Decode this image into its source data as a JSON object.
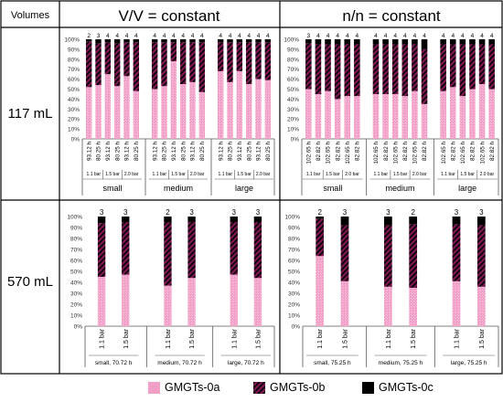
{
  "header": {
    "corner": "Volumes",
    "col1": "V/V = constant",
    "col2": "n/n = constant",
    "row1": "117 mL",
    "row2": "570 mL"
  },
  "legend": [
    {
      "label": "GMGTs-0a",
      "key": "a"
    },
    {
      "label": "GMGTs-0b",
      "key": "b"
    },
    {
      "label": "GMGTs-0c",
      "key": "c"
    }
  ],
  "colors": {
    "a": "#f29fc7",
    "b": "#7a1650",
    "c": "#000000",
    "grid": "#7f7f7f",
    "axis": "#595959"
  },
  "chart_data": [
    {
      "id": "117-vv",
      "type": "bar",
      "stacked": true,
      "ylim": [
        0,
        100
      ],
      "ylabel_format": "%",
      "yticks": [
        "0%",
        "10%",
        "20%",
        "30%",
        "40%",
        "50%",
        "60%",
        "70%",
        "80%",
        "90%",
        "100%"
      ],
      "groups": [
        {
          "label": "small",
          "bars": [
            {
              "time": "93.12 h",
              "pressure": "1.1 bar",
              "n": "2",
              "a": 52,
              "b": 46,
              "c": 2
            },
            {
              "time": "80.25 h",
              "pressure": "1.1 bar",
              "n": "3",
              "a": 54,
              "b": 42,
              "c": 4
            },
            {
              "time": "93.12 h",
              "pressure": "1.5 bar",
              "n": "4",
              "a": 65,
              "b": 32,
              "c": 3
            },
            {
              "time": "80.25 h",
              "pressure": "1.5 bar",
              "n": "4",
              "a": 53,
              "b": 43,
              "c": 4
            },
            {
              "time": "93.12 h",
              "pressure": "2.0 bar",
              "n": "4",
              "a": 63,
              "b": 34,
              "c": 3
            },
            {
              "time": "80.25 h",
              "pressure": "2.0 bar",
              "n": "4",
              "a": 48,
              "b": 49,
              "c": 3
            }
          ]
        },
        {
          "label": "medium",
          "bars": [
            {
              "time": "93.12 h",
              "pressure": "",
              "n": "4",
              "a": 50,
              "b": 47,
              "c": 3
            },
            {
              "time": "80.25 h",
              "pressure": "",
              "n": "4",
              "a": 53,
              "b": 44,
              "c": 3
            },
            {
              "time": "93.12 h",
              "pressure": "",
              "n": "4",
              "a": 78,
              "b": 19,
              "c": 3
            },
            {
              "time": "80.25 h",
              "pressure": "",
              "n": "4",
              "a": 55,
              "b": 42,
              "c": 3
            },
            {
              "time": "93.12 h",
              "pressure": "",
              "n": "4",
              "a": 57,
              "b": 40,
              "c": 3
            },
            {
              "time": "80.25 h",
              "pressure": "",
              "n": "4",
              "a": 47,
              "b": 50,
              "c": 3
            }
          ]
        },
        {
          "label": "large",
          "bars": [
            {
              "time": "93.12 h",
              "pressure": "",
              "n": "4",
              "a": 68,
              "b": 29,
              "c": 3
            },
            {
              "time": "80.25 h",
              "pressure": "",
              "n": "4",
              "a": 57,
              "b": 40,
              "c": 3
            },
            {
              "time": "93.12 h",
              "pressure": "",
              "n": "4",
              "a": 68,
              "b": 29,
              "c": 3
            },
            {
              "time": "80.25 h",
              "pressure": "",
              "n": "4",
              "a": 55,
              "b": 42,
              "c": 3
            },
            {
              "time": "93.12 h",
              "pressure": "",
              "n": "4",
              "a": 60,
              "b": 37,
              "c": 3
            },
            {
              "time": "80.25 h",
              "pressure": "",
              "n": "4",
              "a": 59,
              "b": 38,
              "c": 3
            }
          ]
        }
      ]
    },
    {
      "id": "117-nn",
      "type": "bar",
      "stacked": true,
      "ylim": [
        0,
        100
      ],
      "ylabel_format": "%",
      "yticks": [
        "0%",
        "10%",
        "20%",
        "30%",
        "40%",
        "50%",
        "60%",
        "70%",
        "80%",
        "90%",
        "100%"
      ],
      "groups": [
        {
          "label": "small",
          "bars": [
            {
              "time": "102.65 h",
              "pressure": "1.1 bar",
              "n": "3",
              "a": 50,
              "b": 46,
              "c": 4
            },
            {
              "time": "82.82 h",
              "pressure": "1.1 bar",
              "n": "4",
              "a": 45,
              "b": 50,
              "c": 5
            },
            {
              "time": "102.65 h",
              "pressure": "1.5 bar",
              "n": "4",
              "a": 48,
              "b": 47,
              "c": 5
            },
            {
              "time": "82.82 h",
              "pressure": "1.5 bar",
              "n": "4",
              "a": 40,
              "b": 55,
              "c": 5
            },
            {
              "time": "102.65 h",
              "pressure": "2.0 bar",
              "n": "4",
              "a": 43,
              "b": 52,
              "c": 5
            },
            {
              "time": "82.82 h",
              "pressure": "2.0 bar",
              "n": "4",
              "a": 43,
              "b": 52,
              "c": 5
            }
          ]
        },
        {
          "label": "medium",
          "bars": [
            {
              "time": "102.65 h",
              "pressure": "",
              "n": "4",
              "a": 45,
              "b": 50,
              "c": 5
            },
            {
              "time": "82.82 h",
              "pressure": "",
              "n": "4",
              "a": 45,
              "b": 50,
              "c": 5
            },
            {
              "time": "102.65 h",
              "pressure": "",
              "n": "4",
              "a": 45,
              "b": 50,
              "c": 5
            },
            {
              "time": "82.82 h",
              "pressure": "",
              "n": "4",
              "a": 43,
              "b": 52,
              "c": 5
            },
            {
              "time": "102.65 h",
              "pressure": "",
              "n": "4",
              "a": 48,
              "b": 47,
              "c": 5
            },
            {
              "time": "82.82 h",
              "pressure": "",
              "n": "4",
              "a": 35,
              "b": 55,
              "c": 10
            }
          ]
        },
        {
          "label": "large",
          "bars": [
            {
              "time": "102.65 h",
              "pressure": "",
              "n": "4",
              "a": 48,
              "b": 47,
              "c": 5
            },
            {
              "time": "82.82 h",
              "pressure": "",
              "n": "4",
              "a": 52,
              "b": 43,
              "c": 5
            },
            {
              "time": "102.65 h",
              "pressure": "",
              "n": "4",
              "a": 43,
              "b": 52,
              "c": 5
            },
            {
              "time": "82.82 h",
              "pressure": "",
              "n": "4",
              "a": 50,
              "b": 45,
              "c": 5
            },
            {
              "time": "102.65 h",
              "pressure": "",
              "n": "4",
              "a": 55,
              "b": 40,
              "c": 5
            },
            {
              "time": "82.82 h",
              "pressure": "",
              "n": "4",
              "a": 50,
              "b": 45,
              "c": 5
            }
          ]
        }
      ]
    },
    {
      "id": "570-vv",
      "type": "bar",
      "stacked": true,
      "ylim": [
        0,
        100
      ],
      "ylabel_format": "%",
      "yticks": [
        "0%",
        "10%",
        "20%",
        "30%",
        "40%",
        "50%",
        "60%",
        "70%",
        "80%",
        "90%",
        "100%"
      ],
      "groups": [
        {
          "label": "small, 70.72 h",
          "bars": [
            {
              "time": "",
              "pressure": "1.1 bar",
              "n": "3",
              "a": 45,
              "b": 49,
              "c": 6
            },
            {
              "time": "",
              "pressure": "1.5 bar",
              "n": "3",
              "a": 47,
              "b": 48,
              "c": 5
            }
          ]
        },
        {
          "label": "medium, 70.72 h",
          "bars": [
            {
              "time": "",
              "pressure": "1.1 bar",
              "n": "2",
              "a": 37,
              "b": 58,
              "c": 5
            },
            {
              "time": "",
              "pressure": "1.5 bar",
              "n": "3",
              "a": 44,
              "b": 51,
              "c": 5
            }
          ]
        },
        {
          "label": "large, 70.72 h",
          "bars": [
            {
              "time": "",
              "pressure": "1.1 bar",
              "n": "3",
              "a": 47,
              "b": 48,
              "c": 5
            },
            {
              "time": "",
              "pressure": "1.5 bar",
              "n": "3",
              "a": 44,
              "b": 51,
              "c": 5
            }
          ]
        }
      ]
    },
    {
      "id": "570-nn",
      "type": "bar",
      "stacked": true,
      "ylim": [
        0,
        100
      ],
      "ylabel_format": "%",
      "yticks": [
        "0%",
        "10%",
        "20%",
        "30%",
        "40%",
        "50%",
        "60%",
        "70%",
        "80%",
        "90%",
        "100%"
      ],
      "groups": [
        {
          "label": "small, 75.25 h",
          "bars": [
            {
              "time": "",
              "pressure": "1.1 bar",
              "n": "2",
              "a": 64,
              "b": 34,
              "c": 2
            },
            {
              "time": "",
              "pressure": "1.5 bar",
              "n": "3",
              "a": 41,
              "b": 51,
              "c": 8
            }
          ]
        },
        {
          "label": "medium, 75.25 h",
          "bars": [
            {
              "time": "",
              "pressure": "1.1 bar",
              "n": "3",
              "a": 36,
              "b": 56,
              "c": 8
            },
            {
              "time": "",
              "pressure": "1.5 bar",
              "n": "2",
              "a": 35,
              "b": 58,
              "c": 7
            }
          ]
        },
        {
          "label": "large, 75.25 h",
          "bars": [
            {
              "time": "",
              "pressure": "1.1 bar",
              "n": "3",
              "a": 41,
              "b": 52,
              "c": 7
            },
            {
              "time": "",
              "pressure": "1.5 bar",
              "n": "3",
              "a": 36,
              "b": 56,
              "c": 8
            }
          ]
        }
      ]
    }
  ]
}
